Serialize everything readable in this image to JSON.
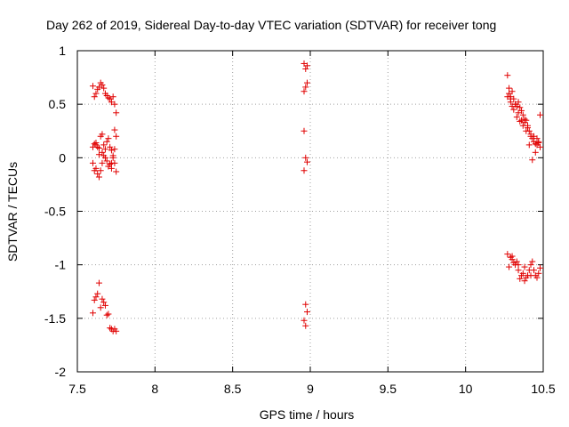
{
  "chart_data": {
    "type": "scatter",
    "title": "Day 262 of 2019, Sidereal Day-to-day VTEC variation (SDTVAR) for receiver tong",
    "xlabel": "GPS time / hours",
    "ylabel": "SDTVAR / TECUs",
    "xlim": [
      7.5,
      10.5
    ],
    "ylim": [
      -2,
      1
    ],
    "grid": true,
    "marker": "+",
    "color": "#e00000",
    "x_ticks": [
      7.5,
      8,
      8.5,
      9,
      9.5,
      10,
      10.5
    ],
    "x_tick_labels": [
      "7.5",
      "8",
      "8.5",
      "9",
      "9.5",
      "10",
      "10.5"
    ],
    "y_ticks": [
      1,
      0.5,
      0,
      -0.5,
      -1,
      -1.5,
      -2
    ],
    "y_tick_labels": [
      "1",
      "0.5",
      "0",
      "-0.5",
      "-1",
      "-1.5",
      "-2"
    ],
    "series": [
      {
        "name": "SDTVAR",
        "x": [
          7.6,
          7.61,
          7.62,
          7.63,
          7.64,
          7.65,
          7.66,
          7.67,
          7.68,
          7.69,
          7.7,
          7.71,
          7.72,
          7.73,
          7.74,
          7.75,
          7.6,
          7.61,
          7.62,
          7.63,
          7.64,
          7.65,
          7.66,
          7.67,
          7.68,
          7.69,
          7.7,
          7.71,
          7.72,
          7.73,
          7.74,
          7.75,
          7.6,
          7.61,
          7.62,
          7.63,
          7.64,
          7.65,
          7.66,
          7.67,
          7.68,
          7.69,
          7.7,
          7.71,
          7.72,
          7.73,
          7.74,
          7.75,
          7.6,
          7.61,
          7.62,
          7.63,
          7.64,
          7.65,
          7.66,
          7.67,
          7.68,
          7.69,
          7.7,
          7.71,
          7.72,
          7.73,
          7.74,
          7.75,
          7.62,
          7.64,
          7.66,
          7.7,
          7.72,
          7.74,
          8.96,
          8.97,
          8.98,
          8.96,
          8.97,
          8.98,
          8.96,
          8.97,
          8.98,
          8.96,
          8.97,
          8.98,
          8.96,
          8.97,
          10.27,
          10.28,
          10.29,
          10.3,
          10.31,
          10.32,
          10.33,
          10.34,
          10.35,
          10.36,
          10.37,
          10.38,
          10.39,
          10.4,
          10.41,
          10.42,
          10.43,
          10.44,
          10.45,
          10.46,
          10.47,
          10.48,
          10.27,
          10.28,
          10.29,
          10.3,
          10.32,
          10.34,
          10.36,
          10.38,
          10.4,
          10.42,
          10.44,
          10.46,
          10.48,
          10.29,
          10.31,
          10.33,
          10.35,
          10.37,
          10.39,
          10.41,
          10.43,
          10.45,
          10.47,
          10.27,
          10.28,
          10.29,
          10.3,
          10.31,
          10.32,
          10.33,
          10.34,
          10.35,
          10.36,
          10.37,
          10.38,
          10.39,
          10.4,
          10.41,
          10.42,
          10.43,
          10.44,
          10.45,
          10.46,
          10.47,
          10.48,
          10.3,
          10.34,
          10.38,
          10.42
        ],
        "y": [
          0.67,
          0.57,
          0.6,
          0.64,
          0.66,
          0.7,
          0.68,
          0.65,
          0.6,
          0.58,
          0.56,
          0.55,
          0.52,
          0.57,
          0.5,
          0.42,
          0.1,
          0.13,
          0.12,
          0.1,
          0.09,
          0.2,
          0.22,
          0.12,
          0.08,
          0.15,
          0.18,
          0.1,
          0.07,
          0.02,
          0.26,
          0.2,
          -0.05,
          -0.12,
          -0.1,
          -0.15,
          -0.18,
          -0.12,
          -0.05,
          0.02,
          0.0,
          -0.03,
          -0.08,
          -0.06,
          -0.1,
          0.0,
          -0.05,
          -0.13,
          -1.45,
          -1.33,
          -1.3,
          -1.27,
          -1.17,
          -1.4,
          -1.32,
          -1.35,
          -1.38,
          -1.47,
          -1.46,
          -1.59,
          -1.6,
          -1.62,
          -1.6,
          -1.62,
          0.14,
          0.03,
          0.05,
          -0.08,
          -0.05,
          0.08,
          0.88,
          0.83,
          0.86,
          0.62,
          0.66,
          0.7,
          0.25,
          0.0,
          -0.04,
          -0.12,
          -1.37,
          -1.44,
          -1.52,
          -1.57,
          0.77,
          0.6,
          0.57,
          0.62,
          0.55,
          0.5,
          0.48,
          0.52,
          0.47,
          0.44,
          0.4,
          0.36,
          0.35,
          0.3,
          0.25,
          0.2,
          0.18,
          0.15,
          0.13,
          0.12,
          0.14,
          0.1,
          0.57,
          0.65,
          0.55,
          0.48,
          0.5,
          0.42,
          0.35,
          0.33,
          0.28,
          0.22,
          0.2,
          0.18,
          0.4,
          0.52,
          0.45,
          0.38,
          0.34,
          0.3,
          0.25,
          0.12,
          -0.02,
          0.05,
          0.15,
          -0.9,
          -1.02,
          -0.93,
          -0.95,
          -0.98,
          -1.0,
          -0.97,
          -1.05,
          -1.13,
          -1.1,
          -1.08,
          -1.15,
          -1.12,
          -1.1,
          -1.05,
          -1.0,
          -0.97,
          -1.05,
          -1.1,
          -1.12,
          -1.08,
          -1.03,
          -0.92,
          -1.0,
          -1.02,
          -1.1
        ]
      }
    ]
  }
}
